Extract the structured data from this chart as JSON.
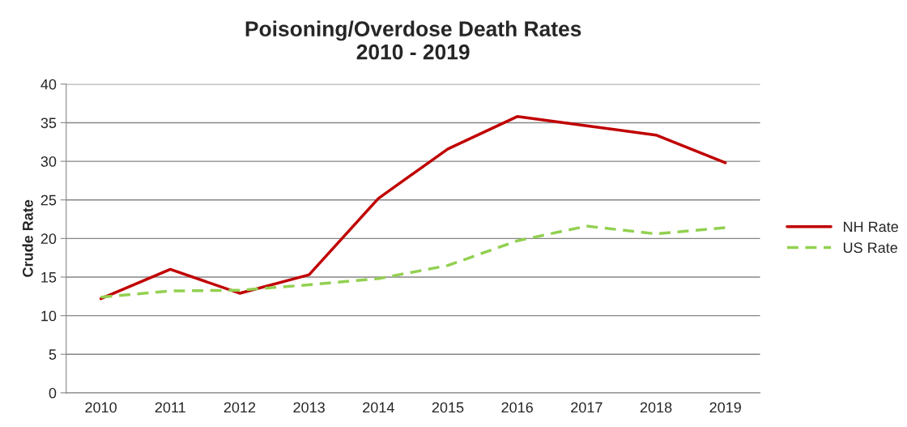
{
  "chart_data": {
    "type": "line",
    "title": "Poisoning/Overdose Death Rates\n2010 - 2019",
    "ylabel": "Crude Rate",
    "categories": [
      "2010",
      "2011",
      "2012",
      "2013",
      "2014",
      "2015",
      "2016",
      "2017",
      "2018",
      "2019"
    ],
    "series": [
      {
        "name": "NH Rate",
        "color": "#c00000",
        "line_style": "solid",
        "values": [
          12.2,
          16.0,
          12.9,
          15.3,
          25.2,
          31.6,
          35.8,
          34.6,
          33.4,
          29.8
        ]
      },
      {
        "name": "US Rate",
        "color": "#92d050",
        "line_style": "dashed",
        "values": [
          12.4,
          13.2,
          13.3,
          14.0,
          14.8,
          16.5,
          19.7,
          21.6,
          20.6,
          21.4
        ]
      }
    ],
    "ylim": [
      0,
      40
    ],
    "yticks": [
      0,
      5,
      10,
      15,
      20,
      25,
      30,
      35,
      40
    ],
    "grid": "y",
    "legend": "right",
    "marker": "none"
  }
}
